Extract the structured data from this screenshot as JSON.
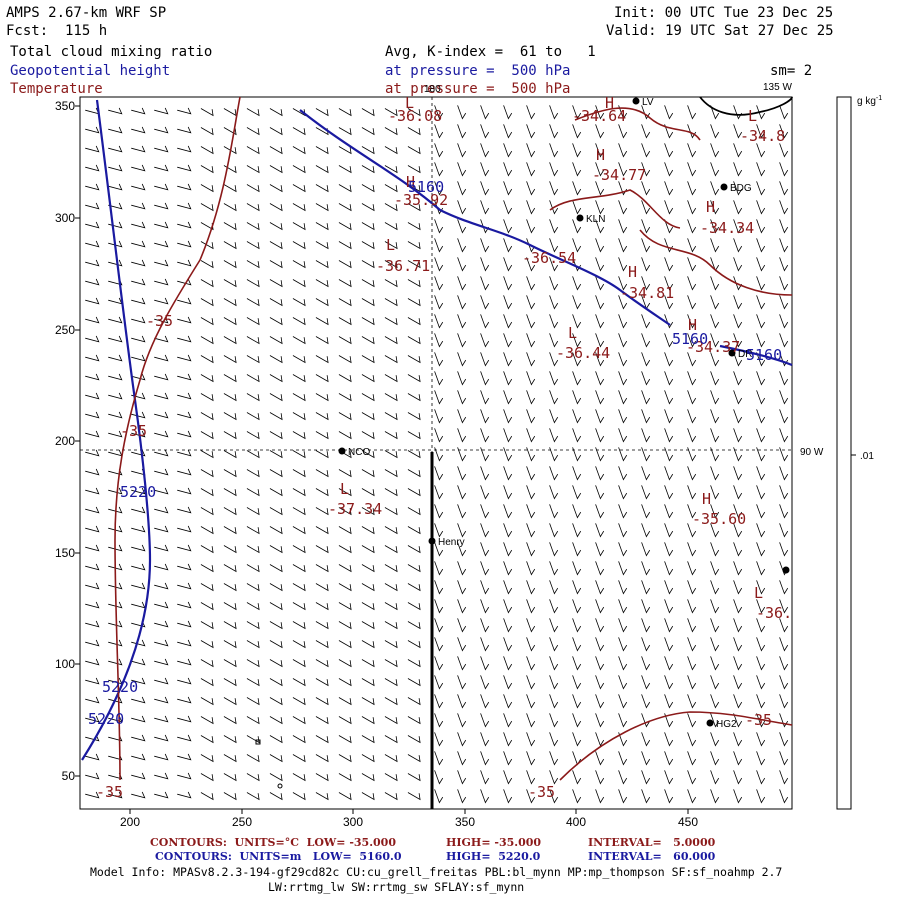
{
  "header": {
    "model": "AMPS 2.67-km WRF SP",
    "forecast": "Fcst:  115 h",
    "init": "Init: 00 UTC Tue 23 Dec 25",
    "valid": "Valid: 19 UTC Sat 27 Dec 25",
    "field1": "Total cloud mixing ratio",
    "field2": "Geopotential height",
    "field3": "Temperature",
    "avg": "Avg, K-index =  61 to   1",
    "pressure1": "at pressure =  500 hPa",
    "pressure2": "at pressure =  500 hPa",
    "smoothing": "sm= 2"
  },
  "map": {
    "meridian_top": "180",
    "meridian_right_top": "135 W",
    "meridian_right_mid": "90 W",
    "x_ticks": [
      "200",
      "250",
      "300",
      "350",
      "400",
      "450"
    ],
    "y_ticks": [
      "350",
      "300",
      "250",
      "200",
      "150",
      "100",
      "50"
    ],
    "stations": [
      {
        "label": "NCO"
      },
      {
        "label": "Henry"
      },
      {
        "label": "KLN"
      },
      {
        "label": "BDG"
      },
      {
        "label": "HG2"
      },
      {
        "label": "LV"
      },
      {
        "label": "DR"
      }
    ],
    "temp_labels": [
      "L",
      "-36.08",
      "H",
      "-34.64",
      "L",
      "-34.8",
      "H",
      "-34.77",
      "H",
      "-35.92",
      "H",
      "-34.34",
      "L",
      "-36.71",
      "-36.54",
      "H",
      "-34.81",
      "L",
      "-36.44",
      "H",
      "-34.37",
      "L",
      "-37.34",
      "H",
      "-35.60",
      "L",
      "-36.",
      "-35",
      "-35",
      "-35",
      "-35",
      "-35"
    ],
    "height_labels": [
      "5160",
      "5160",
      "5160",
      "5220",
      "5220",
      "5220"
    ],
    "colorbar_unit": "g kg",
    "colorbar_unit_exp": "-1",
    "colorbar_value": ".01",
    "colors": {
      "temperature": "#8b1a1a",
      "height": "#1a1aa0",
      "grid": "#000000"
    }
  },
  "footer": {
    "line1_a": "CONTOURS:  UNITS=°C  LOW= -35.000",
    "line1_b": "HIGH= -35.000",
    "line1_c": "INTERVAL=   5.0000",
    "line2_a": "CONTOURS:  UNITS=m   LOW=  5160.0",
    "line2_b": "HIGH=  5220.0",
    "line2_c": "INTERVAL=   60.000",
    "model_info": "Model Info: MPASv8.2.3-194-gf29cd82c CU:cu_grell_freitas PBL:bl_mynn MP:mp_thompson SF:sf_noahmp 2.7",
    "model_info2": "LW:rrtmg_lw SW:rrtmg_sw SFLAY:sf_mynn"
  }
}
